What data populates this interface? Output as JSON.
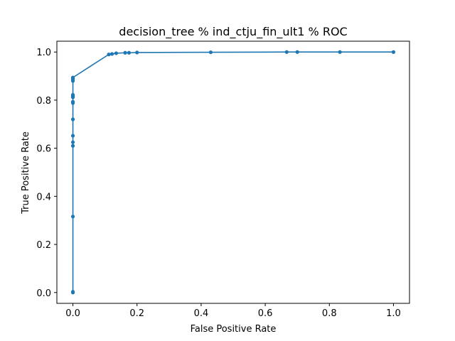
{
  "chart_data": {
    "type": "line",
    "title": "decision_tree % ind_ctju_fin_ult1 % ROC",
    "xlabel": "False Positive Rate",
    "ylabel": "True Positive Rate",
    "xlim": [
      -0.05,
      1.05
    ],
    "ylim": [
      -0.045,
      1.045
    ],
    "xticks": [
      0.0,
      0.2,
      0.4,
      0.6,
      0.8,
      1.0
    ],
    "xtick_labels": [
      "0.0",
      "0.2",
      "0.4",
      "0.6",
      "0.8",
      "1.0"
    ],
    "yticks": [
      0.0,
      0.2,
      0.4,
      0.6,
      0.8,
      1.0
    ],
    "ytick_labels": [
      "0.0",
      "0.2",
      "0.4",
      "0.6",
      "0.8",
      "1.0"
    ],
    "grid": false,
    "color": "#1f77b4",
    "marker": "circle",
    "series": [
      {
        "x": [
          0.0,
          0.0,
          0.0,
          0.0,
          0.0,
          0.0,
          0.0,
          0.0,
          0.0,
          0.0,
          0.0,
          0.0,
          0.0,
          0.0,
          0.0,
          0.0,
          0.0,
          0.0,
          0.112,
          0.122,
          0.135,
          0.163,
          0.175,
          0.2,
          0.43,
          0.667,
          0.7,
          0.833,
          1.0
        ],
        "y": [
          0.0,
          0.003,
          0.316,
          0.61,
          0.625,
          0.652,
          0.72,
          0.788,
          0.793,
          0.812,
          0.816,
          0.82,
          0.822,
          0.88,
          0.885,
          0.889,
          0.892,
          0.894,
          0.99,
          0.992,
          0.995,
          0.997,
          0.997,
          0.998,
          0.999,
          1.0,
          1.0,
          1.0,
          1.0
        ]
      }
    ]
  }
}
